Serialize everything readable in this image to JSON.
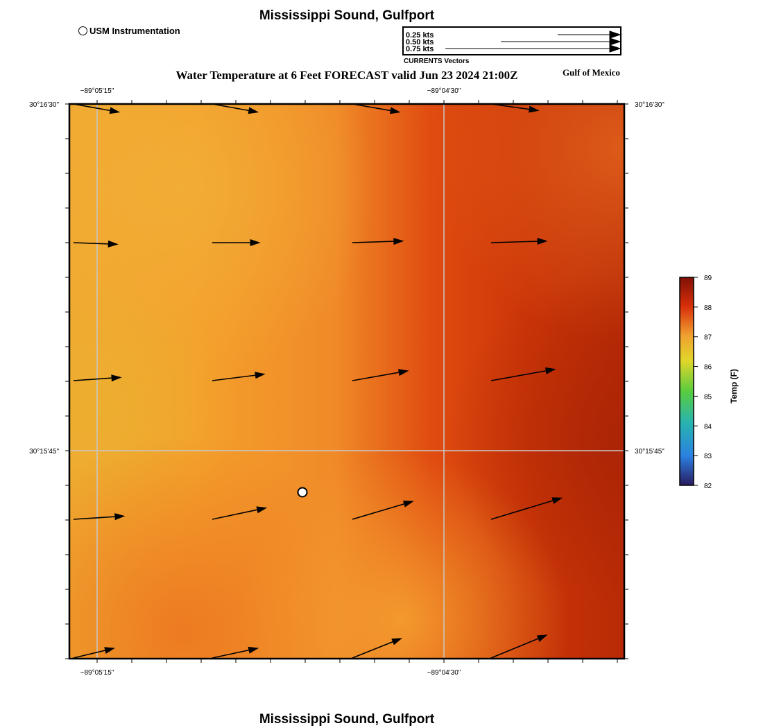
{
  "header": {
    "station": "Mississippi Sound, Gulfport",
    "plot_title": "Water Temperature at 6 Feet FORECAST valid Jun 23 2024 21:00Z",
    "region": "Gulf of Mexico",
    "usm_legend": "USM Instrumentation"
  },
  "footer": {
    "station": "Mississippi Sound, Gulfport"
  },
  "vector_legend": {
    "title": "CURRENTS Vectors",
    "entries": [
      "0.25 kts",
      "0.50 kts",
      "0.75 kts"
    ]
  },
  "axes": {
    "lon_labels": [
      "−89°05'15\"",
      "−89°04'30\""
    ],
    "lat_labels": [
      "30°16'30\"",
      "30°15'45\""
    ]
  },
  "colorbar": {
    "label": "Temp (F)",
    "ticks": [
      "89",
      "88",
      "87",
      "86",
      "85",
      "84",
      "83",
      "82"
    ],
    "colors": [
      "#8a1406",
      "#d73c0a",
      "#f0a030",
      "#e6d02a",
      "#6ad03c",
      "#28b8a8",
      "#2a90e0",
      "#2a2070"
    ]
  },
  "map_data": {
    "marker": {
      "name": "USM Instrumentation",
      "lon_frac": 0.42,
      "lat_frac": 0.3
    },
    "vectors": [
      {
        "u": 0.28,
        "v": -0.05
      },
      {
        "u": 0.28,
        "v": -0.05
      },
      {
        "u": 0.29,
        "v": -0.05
      },
      {
        "u": 0.29,
        "v": -0.04
      },
      {
        "u": 0.27,
        "v": -0.01
      },
      {
        "u": 0.29,
        "v": 0.0
      },
      {
        "u": 0.31,
        "v": 0.01
      },
      {
        "u": 0.34,
        "v": 0.01
      },
      {
        "u": 0.29,
        "v": 0.02
      },
      {
        "u": 0.32,
        "v": 0.04
      },
      {
        "u": 0.34,
        "v": 0.06
      },
      {
        "u": 0.39,
        "v": 0.07
      },
      {
        "u": 0.31,
        "v": 0.02
      },
      {
        "u": 0.33,
        "v": 0.07
      },
      {
        "u": 0.37,
        "v": 0.11
      },
      {
        "u": 0.43,
        "v": 0.13
      },
      {
        "u": 0.25,
        "v": 0.06
      },
      {
        "u": 0.28,
        "v": 0.06
      },
      {
        "u": 0.3,
        "v": 0.12
      },
      {
        "u": 0.34,
        "v": 0.14
      }
    ]
  }
}
